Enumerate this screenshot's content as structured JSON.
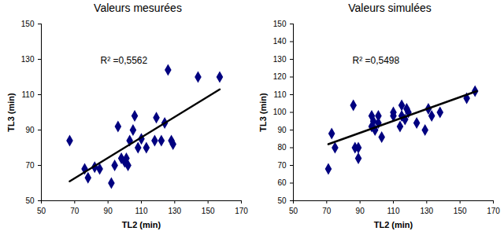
{
  "chart_data": [
    {
      "type": "scatter",
      "title": "Valeurs mesurées",
      "x_label": "TL2 (min)",
      "y_label": "TL3 (min)",
      "annotation": "R² =0,5562",
      "xlim": [
        50,
        170
      ],
      "xticks": [
        50,
        70,
        90,
        110,
        130,
        150,
        170
      ],
      "ylim": [
        50,
        150
      ],
      "yticks": [
        50,
        70,
        90,
        110,
        130,
        150
      ],
      "series": [
        {
          "type": "scatter",
          "marker": "diamond",
          "color": "#000080",
          "x": [
            67,
            76,
            78,
            82,
            85,
            92,
            94,
            96,
            98,
            100,
            101,
            102,
            103,
            105,
            106,
            108,
            110,
            113,
            118,
            119,
            122,
            124,
            126,
            128,
            129,
            144,
            157
          ],
          "values": [
            84,
            68,
            63,
            69,
            68,
            60,
            70,
            92,
            74,
            72,
            74,
            70,
            84,
            90,
            98,
            80,
            85,
            80,
            84,
            97,
            84,
            94,
            124,
            84,
            82,
            120,
            120
          ]
        },
        {
          "type": "line",
          "line_style": "solid",
          "color": "#000000",
          "x": [
            67,
            157
          ],
          "values": [
            61,
            113
          ]
        }
      ]
    },
    {
      "type": "scatter",
      "title": "Valeurs simulées",
      "x_label": "TL2 (min)",
      "y_label": "TL3 (min)",
      "annotation": "R² =0,5498",
      "xlim": [
        50,
        170
      ],
      "xticks": [
        50,
        70,
        90,
        110,
        130,
        150,
        170
      ],
      "ylim": [
        50,
        150
      ],
      "yticks": [
        50,
        60,
        70,
        80,
        90,
        100,
        110,
        120,
        130,
        140,
        150
      ],
      "series": [
        {
          "type": "scatter",
          "marker": "diamond",
          "color": "#000080",
          "x": [
            71,
            73,
            75,
            86,
            87,
            89,
            89,
            97,
            97,
            98,
            99,
            101,
            101,
            103,
            110,
            110,
            114,
            115,
            115,
            117,
            118,
            119,
            124,
            129,
            131,
            133,
            138,
            154,
            159
          ],
          "values": [
            68,
            88,
            80,
            104,
            80,
            80,
            74,
            92,
            98,
            95,
            90,
            98,
            94,
            86,
            98,
            100,
            92,
            104,
            98,
            96,
            102,
            100,
            94,
            90,
            102,
            98,
            100,
            108,
            112
          ]
        },
        {
          "type": "line",
          "line_style": "solid",
          "color": "#000000",
          "x": [
            71,
            160
          ],
          "values": [
            82,
            112
          ]
        }
      ]
    }
  ]
}
